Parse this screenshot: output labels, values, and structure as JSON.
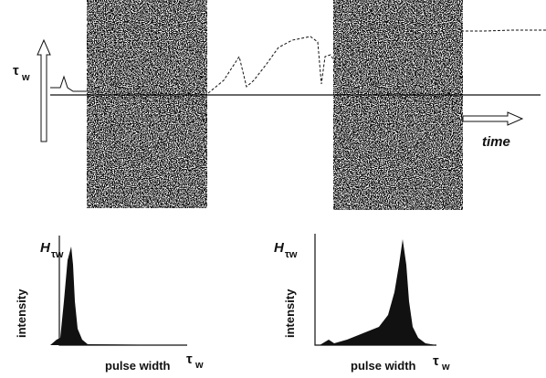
{
  "top_panel": {
    "y_label": "τ",
    "y_label_sub": "w",
    "x_label": "time"
  },
  "histograms": [
    {
      "title": "H",
      "title_sub": "τw",
      "y_label": "intensity",
      "x_label": "pulse width",
      "x_end": "τ",
      "x_end_sub": "w"
    },
    {
      "title": "H",
      "title_sub": "τw",
      "y_label": "intensity",
      "x_label": "pulse width",
      "x_end": "τ",
      "x_end_sub": "w"
    }
  ]
}
